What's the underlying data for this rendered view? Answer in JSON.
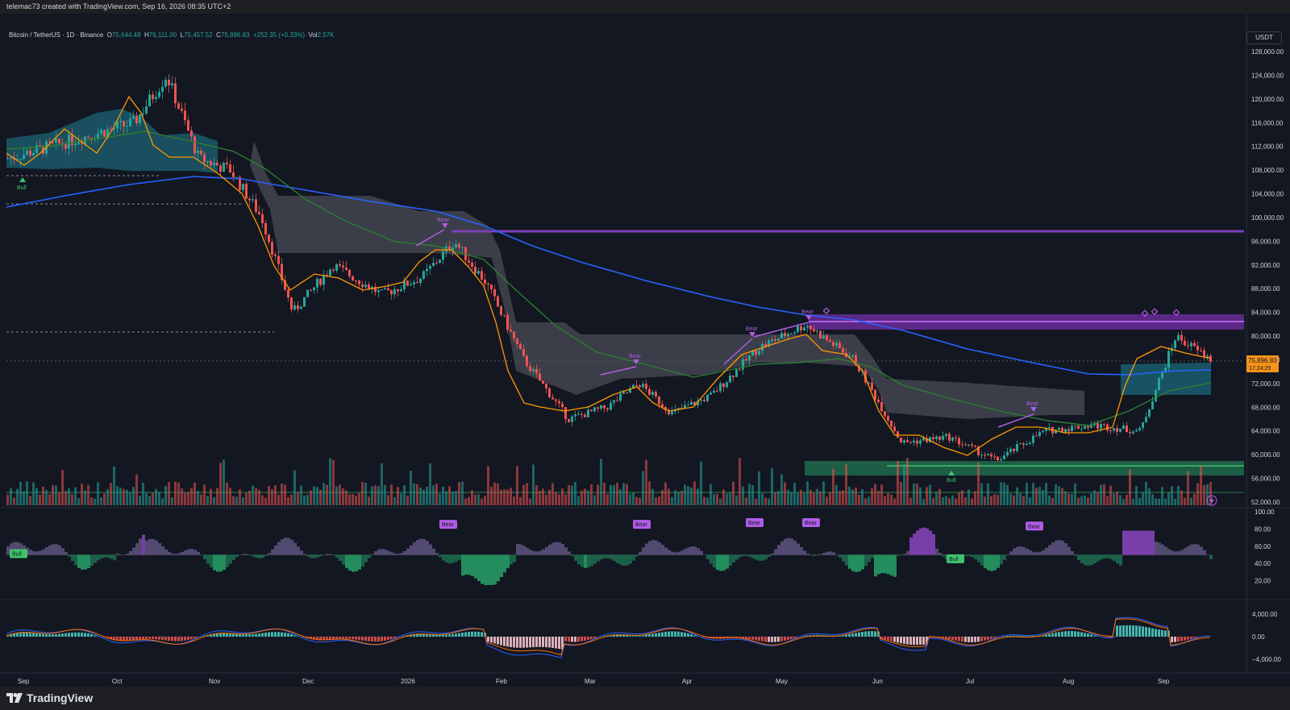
{
  "header": {
    "caption": "telemac73 created with TradingView.com, Sep 16, 2026 08:35 UTC+2"
  },
  "legend": {
    "symbol": "Bitcoin / TetherUS · 1D · Binance",
    "open_label": "O",
    "open": "75,644.48",
    "high_label": "H",
    "high": "76,111.00",
    "low_label": "L",
    "low": "75,457.52",
    "close_label": "C",
    "close": "75,896.83",
    "change": "+252.35 (+0.33%)",
    "vol_label": "Vol",
    "vol": "2.57K"
  },
  "currency_button": "USDT",
  "price_badge": {
    "price": "75,896.83",
    "countdown": "17:24:29"
  },
  "brand": "TradingView",
  "colors": {
    "up": "#26a69a",
    "down": "#ef5350",
    "ma200": "#2962ff",
    "ma_green": "#2e7d32",
    "ema": "#ff9800",
    "bear": "#b05de6",
    "bull": "#3fc46b"
  },
  "chart_data": [
    {
      "type": "candlestick",
      "title": "Bitcoin / TetherUS · 1D · Binance",
      "x_ticks": [
        "Sep",
        "Oct",
        "Nov",
        "Dec",
        "2026",
        "Feb",
        "Mar",
        "Apr",
        "May",
        "Jun",
        "Jul",
        "Aug",
        "Sep"
      ],
      "y_ticks": [
        "128,000.00",
        "124,000.00",
        "120,000.00",
        "116,000.00",
        "112,000.00",
        "108,000.00",
        "104,000.00",
        "100,000.00",
        "96,000.00",
        "92,000.00",
        "88,000.00",
        "84,000.00",
        "80,000.00",
        "76,000.00",
        "72,000.00",
        "68,000.00",
        "64,000.00",
        "60,000.00",
        "56,000.00",
        "52,000.00"
      ],
      "ylim": [
        50000,
        130000
      ],
      "approx_close_path": [
        [
          "Sep",
          110000
        ],
        [
          "Oct",
          116000
        ],
        [
          "Oct",
          124000
        ],
        [
          "Oct",
          110000
        ],
        [
          "Nov",
          108000
        ],
        [
          "Nov",
          100000
        ],
        [
          "Nov",
          84000
        ],
        [
          "Dec",
          92000
        ],
        [
          "Dec",
          87000
        ],
        [
          "2026",
          90000
        ],
        [
          "2026",
          96000
        ],
        [
          "2026",
          89000
        ],
        [
          "Feb",
          76000
        ],
        [
          "Feb",
          66000
        ],
        [
          "Mar",
          68000
        ],
        [
          "Mar",
          72000
        ],
        [
          "Mar",
          67000
        ],
        [
          "Apr",
          70000
        ],
        [
          "Apr",
          78000
        ],
        [
          "May",
          82000
        ],
        [
          "May",
          76000
        ],
        [
          "Jun",
          62000
        ],
        [
          "Jun",
          63000
        ],
        [
          "Jul",
          59000
        ],
        [
          "Jul",
          64000
        ],
        [
          "Aug",
          65000
        ],
        [
          "Aug",
          64000
        ],
        [
          "Sep",
          80000
        ],
        [
          "Sep",
          75896.83
        ]
      ],
      "annotations": [
        "Bull",
        "Bear",
        "Bear",
        "Bear",
        "Bear",
        "Bear",
        "Bull"
      ]
    },
    {
      "type": "line",
      "title": "",
      "y_ticks": [
        "100.00",
        "80.00",
        "60.00",
        "40.00",
        "20.00"
      ],
      "ylim": [
        0,
        100
      ],
      "annotations": [
        "Bull",
        "Bear",
        "Bear",
        "Bear",
        "Bear",
        "Bull",
        "Bear"
      ]
    },
    {
      "type": "bar",
      "title": "",
      "y_ticks": [
        "4,000.00",
        "0.00",
        "−4,000.00"
      ],
      "ylim": [
        -6000,
        6000
      ]
    }
  ]
}
